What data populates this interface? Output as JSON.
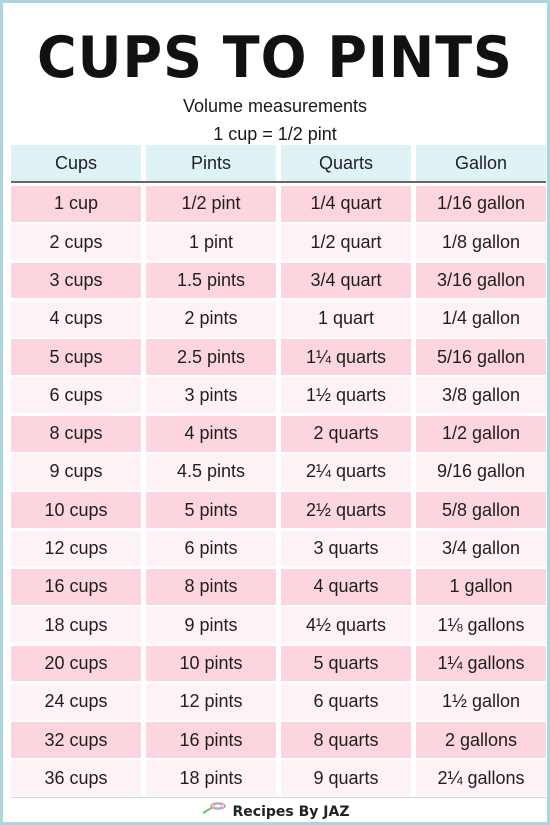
{
  "title": "Cups to Pints",
  "subtitle_line1": "Volume measurements",
  "subtitle_line2": "1 cup = 1/2 pint",
  "columns": [
    "Cups",
    "Pints",
    "Quarts",
    "Gallon"
  ],
  "rows": [
    [
      "1 cup",
      "1/2 pint",
      "1/4 quart",
      "1/16 gallon"
    ],
    [
      "2 cups",
      "1 pint",
      "1/2 quart",
      "1/8 gallon"
    ],
    [
      "3 cups",
      "1.5 pints",
      "3/4 quart",
      "3/16 gallon"
    ],
    [
      "4 cups",
      "2 pints",
      "1 quart",
      "1/4 gallon"
    ],
    [
      "5 cups",
      "2.5 pints",
      "1¼ quarts",
      "5/16 gallon"
    ],
    [
      "6 cups",
      "3 pints",
      "1½ quarts",
      "3/8 gallon"
    ],
    [
      "8 cups",
      "4 pints",
      "2 quarts",
      "1/2 gallon"
    ],
    [
      "9 cups",
      "4.5 pints",
      "2¼ quarts",
      "9/16 gallon"
    ],
    [
      "10 cups",
      "5 pints",
      "2½ quarts",
      "5/8 gallon"
    ],
    [
      "12 cups",
      "6 pints",
      "3 quarts",
      "3/4 gallon"
    ],
    [
      "16 cups",
      "8 pints",
      "4 quarts",
      "1 gallon"
    ],
    [
      "18 cups",
      "9 pints",
      "4½ quarts",
      "1⅛ gallons"
    ],
    [
      "20 cups",
      "10 pints",
      "5 quarts",
      "1¼ gallons"
    ],
    [
      "24 cups",
      "12 pints",
      "6 quarts",
      "1½ gallon"
    ],
    [
      "32 cups",
      "16 pints",
      "8 quarts",
      "2 gallons"
    ],
    [
      "36 cups",
      "18 pints",
      "9 quarts",
      "2¼ gallons"
    ]
  ],
  "footer": {
    "brand": "Recipes By JAZ",
    "icon": "whisk-icon"
  },
  "colors": {
    "header_bg": "#dff2f5",
    "row_pink": "#fcd5df",
    "row_light": "#fdf2f4",
    "border": "#a9d6df"
  }
}
